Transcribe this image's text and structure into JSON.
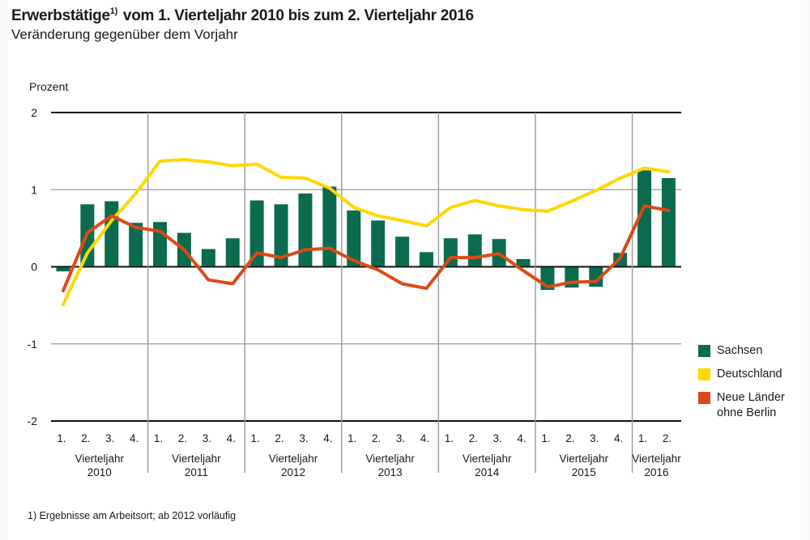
{
  "title": {
    "main_before": "Erwerbstätige",
    "footnote_marker": "1)",
    "main_after": " vom 1. Vierteljahr 2010 bis zum 2. Vierteljahr 2016",
    "subtitle": "Veränderung gegenüber dem Vorjahr"
  },
  "footnote": "1) Ergebnisse am Arbeitsort; ab 2012 vorläufig",
  "colors": {
    "sachsen": "#0b6b4f",
    "deutschland": "#ffd800",
    "neue_laender": "#db4a17",
    "grid_major": "#111111",
    "grid_minor": "#9a9a9a"
  },
  "chart_data": {
    "type": "bar",
    "title": "Erwerbstätige vom 1. Vierteljahr 2010 bis zum 2. Vierteljahr 2016",
    "subtitle": "Veränderung gegenüber dem Vorjahr",
    "ylabel": "Prozent",
    "xlabel": "",
    "ylim": [
      -2,
      2
    ],
    "yticks": [
      2,
      1,
      0,
      -1,
      -2
    ],
    "ytick_labels": [
      "2",
      "1",
      "0",
      "-1",
      "-2"
    ],
    "grid": true,
    "legend_position": "right",
    "groups": [
      {
        "year_label_1": "Vierteljahr",
        "year_label_2": "2010",
        "quarters": [
          "1.",
          "2.",
          "3.",
          "4."
        ]
      },
      {
        "year_label_1": "Vierteljahr",
        "year_label_2": "2011",
        "quarters": [
          "1.",
          "2.",
          "3.",
          "4."
        ]
      },
      {
        "year_label_1": "Vierteljahr",
        "year_label_2": "2012",
        "quarters": [
          "1.",
          "2.",
          "3.",
          "4."
        ]
      },
      {
        "year_label_1": "Vierteljahr",
        "year_label_2": "2013",
        "quarters": [
          "1.",
          "2.",
          "3.",
          "4."
        ]
      },
      {
        "year_label_1": "Vierteljahr",
        "year_label_2": "2014",
        "quarters": [
          "1.",
          "2.",
          "3.",
          "4."
        ]
      },
      {
        "year_label_1": "Vierteljahr",
        "year_label_2": "2015",
        "quarters": [
          "1.",
          "2.",
          "3.",
          "4."
        ]
      },
      {
        "year_label_1": "Vierteljahr",
        "year_label_2": "2016",
        "quarters": [
          "1.",
          "2."
        ]
      }
    ],
    "categories": [
      "2010 Q1",
      "2010 Q2",
      "2010 Q3",
      "2010 Q4",
      "2011 Q1",
      "2011 Q2",
      "2011 Q3",
      "2011 Q4",
      "2012 Q1",
      "2012 Q2",
      "2012 Q3",
      "2012 Q4",
      "2013 Q1",
      "2013 Q2",
      "2013 Q3",
      "2013 Q4",
      "2014 Q1",
      "2014 Q2",
      "2014 Q3",
      "2014 Q4",
      "2015 Q1",
      "2015 Q2",
      "2015 Q3",
      "2015 Q4",
      "2016 Q1",
      "2016 Q2"
    ],
    "series": [
      {
        "name": "Sachsen",
        "kind": "bar",
        "color_key": "sachsen",
        "values": [
          -0.06,
          0.81,
          0.85,
          0.57,
          0.58,
          0.44,
          0.23,
          0.37,
          0.86,
          0.81,
          0.95,
          1.04,
          0.73,
          0.6,
          0.39,
          0.19,
          0.37,
          0.42,
          0.36,
          0.1,
          -0.3,
          -0.27,
          -0.26,
          0.18,
          1.25,
          1.15
        ]
      },
      {
        "name": "Deutschland",
        "kind": "line",
        "color_key": "deutschland",
        "values": [
          -0.49,
          0.18,
          0.6,
          0.95,
          1.37,
          1.39,
          1.36,
          1.31,
          1.33,
          1.16,
          1.15,
          1.02,
          0.77,
          0.66,
          0.6,
          0.53,
          0.77,
          0.86,
          0.79,
          0.74,
          0.72,
          0.85,
          0.99,
          1.15,
          1.28,
          1.23
        ]
      },
      {
        "name": "Neue Länder ohne Berlin",
        "kind": "line",
        "color_key": "neue_laender",
        "values": [
          -0.31,
          0.44,
          0.66,
          0.51,
          0.46,
          0.22,
          -0.17,
          -0.22,
          0.18,
          0.12,
          0.22,
          0.24,
          0.08,
          -0.04,
          -0.22,
          -0.28,
          0.12,
          0.12,
          0.17,
          -0.05,
          -0.26,
          -0.2,
          -0.19,
          0.11,
          0.79,
          0.73
        ]
      }
    ]
  },
  "legend": [
    {
      "label": "Sachsen",
      "color_key": "sachsen"
    },
    {
      "label": "Deutschland",
      "color_key": "deutschland"
    },
    {
      "label": "Neue Länder ohne Berlin",
      "color_key": "neue_laender"
    }
  ]
}
